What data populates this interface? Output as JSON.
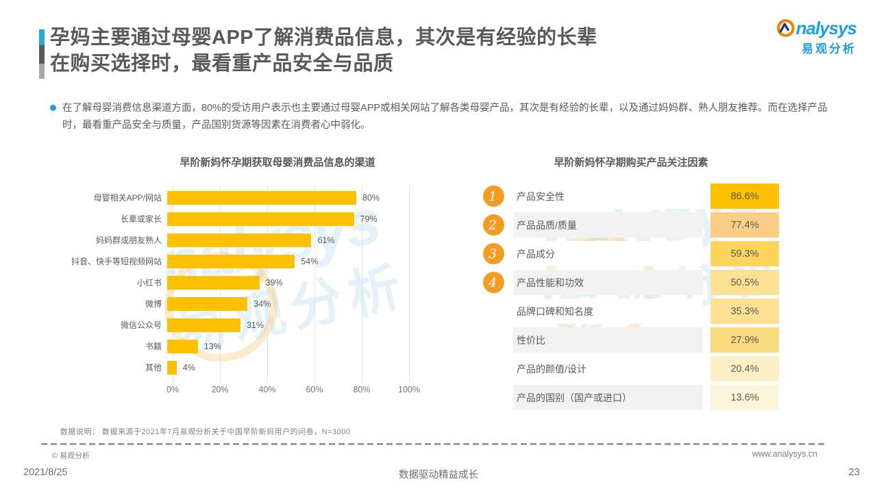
{
  "header": {
    "title_line1": "孕妈主要通过母婴APP了解消费品信息，其次是有经验的长辈",
    "title_line2": "在购买选择时，最看重产品安全与品质"
  },
  "logo": {
    "brand_en": "nalysys",
    "brand_cn": "易观分析",
    "orange": "#F08300",
    "blue": "#1E9EDE"
  },
  "summary": "在了解母婴消费信息渠道方面，80%的受访用户表示也主要通过母婴APP或相关网站了解各类母婴产品，其次是有经验的长辈，以及通过妈妈群、熟人朋友推荐。而在选择产品时，最看重产品安全与质量，产品国别货源等因素在消费者心中弱化。",
  "chart_data": [
    {
      "type": "bar",
      "orientation": "horizontal",
      "title": "早阶新妈怀孕期获取母婴消费品信息的渠道",
      "categories": [
        "母婴相关APP/网站",
        "长辈或家长",
        "妈妈群或朋友熟人",
        "抖音、快手等短视频网站",
        "小红书",
        "微博",
        "微信公众号",
        "书籍",
        "其他"
      ],
      "values": [
        80,
        79,
        61,
        54,
        39,
        34,
        31,
        13,
        4
      ],
      "value_labels": [
        "80%",
        "79%",
        "61%",
        "54%",
        "39%",
        "34%",
        "31%",
        "13%",
        "4%"
      ],
      "xlim": [
        0,
        100
      ],
      "x_ticks": [
        "0%",
        "20%",
        "40%",
        "60%",
        "80%",
        "100%"
      ],
      "bar_color": "#FFC000",
      "grid": true,
      "legend": "none"
    },
    {
      "type": "table",
      "title": "早阶新妈怀孕期购买产品关注因素",
      "badge_color": "#F59B22",
      "rows": [
        {
          "rank": "1",
          "label": "产品安全性",
          "value": "86.6%",
          "cell_color": "#FFC000",
          "row_bg": "#FFFFFF"
        },
        {
          "rank": "2",
          "label": "产品品质/质量",
          "value": "77.4%",
          "cell_color": "#FACD86",
          "row_bg": "#F2F2F2"
        },
        {
          "rank": "3",
          "label": "产品成分",
          "value": "59.3%",
          "cell_color": "#FCD45C",
          "row_bg": "#FFFFFF"
        },
        {
          "rank": "4",
          "label": "产品性能和功效",
          "value": "50.5%",
          "cell_color": "#FDE091",
          "row_bg": "#F2F2F2"
        },
        {
          "rank": "",
          "label": "品牌口碑和知名度",
          "value": "35.3%",
          "cell_color": "#FDE091",
          "row_bg": "#FFFFFF"
        },
        {
          "rank": "",
          "label": "性价比",
          "value": "27.9%",
          "cell_color": "#FBDA7E",
          "row_bg": "#F2F2F2"
        },
        {
          "rank": "",
          "label": "产品的颜值/设计",
          "value": "20.4%",
          "cell_color": "#FEEFC6",
          "row_bg": "#FFFFFF"
        },
        {
          "rank": "",
          "label": "产品的国别（国产或进口）",
          "value": "13.6%",
          "cell_color": "#FEF4DA",
          "row_bg": "#F2F2F2"
        }
      ]
    }
  ],
  "footnote": "数据说明： 数据来源于2021年7月易观分析关于中国早阶新妈用户的问卷，N=3000",
  "footer": {
    "copyright": "© 易观分析",
    "website": "www.analysys.cn",
    "date": "2021/8/25",
    "slogan": "数据驱动精益成长",
    "page": "23"
  }
}
